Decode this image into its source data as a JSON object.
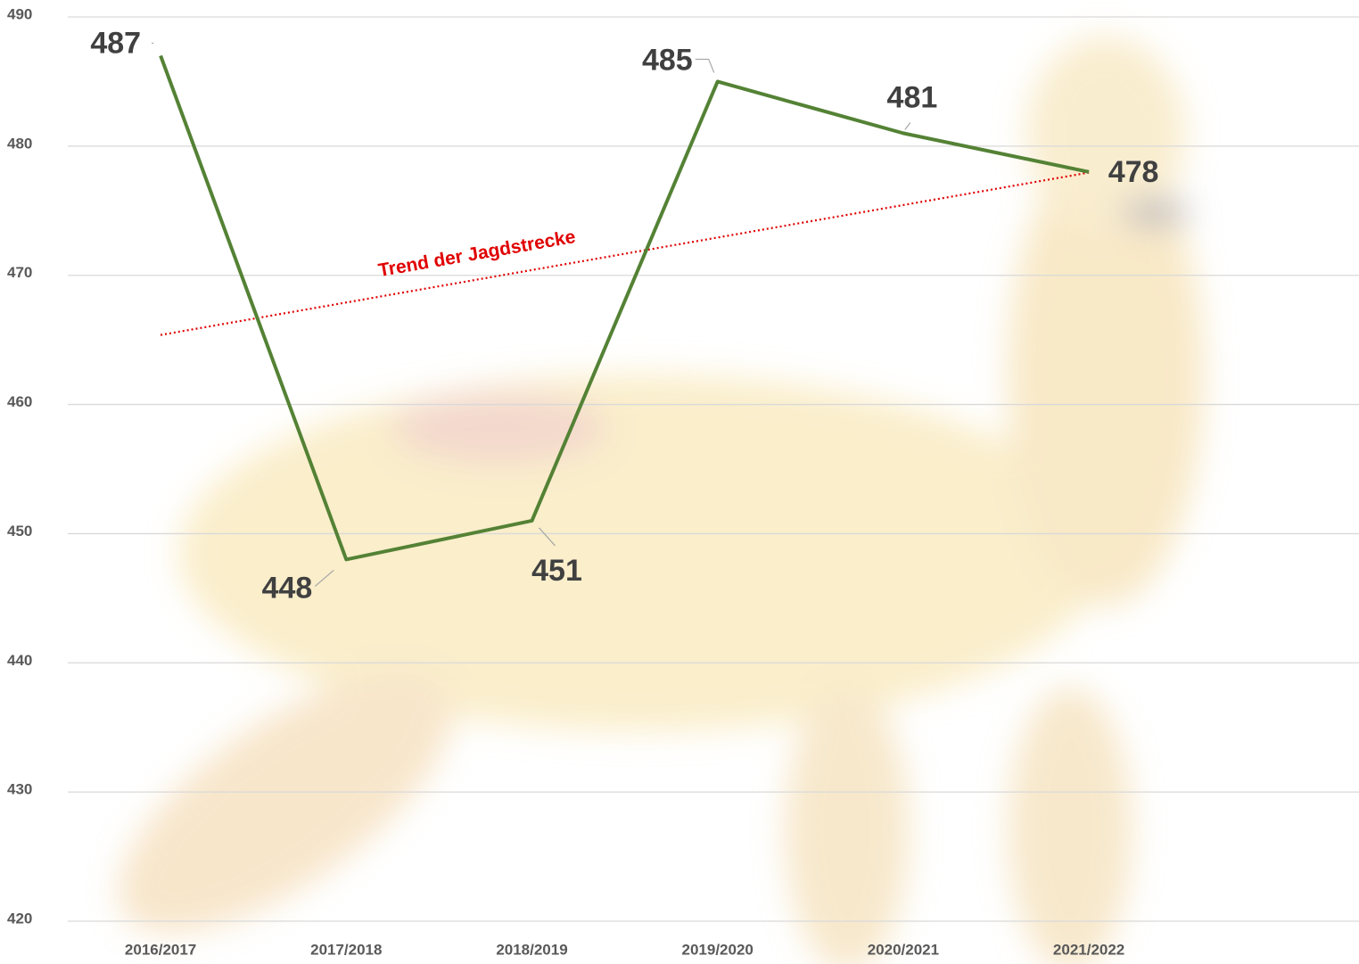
{
  "chart_data": {
    "type": "line",
    "categories": [
      "2016/2017",
      "2017/2018",
      "2018/2019",
      "2019/2020",
      "2020/2021",
      "2021/2022"
    ],
    "series": [
      {
        "color": "#548235",
        "values": [
          487,
          448,
          451,
          485,
          481,
          478
        ]
      }
    ],
    "trendline": {
      "label": "Trend der Jagdstrecke",
      "color": "#e00000"
    },
    "ylim": [
      420,
      490
    ],
    "yticks": [
      420,
      430,
      440,
      450,
      460,
      470,
      480,
      490
    ],
    "grid": true
  }
}
